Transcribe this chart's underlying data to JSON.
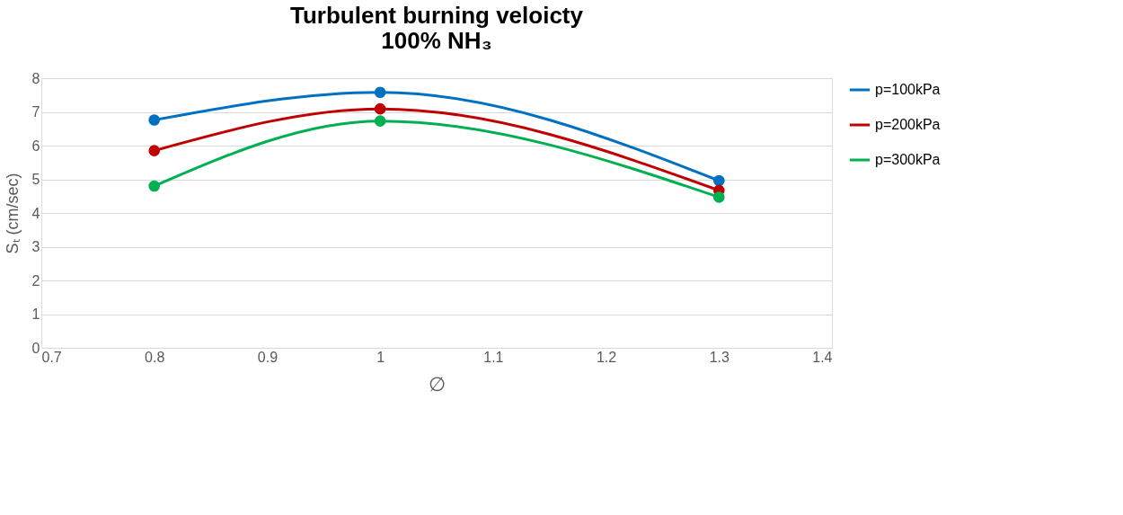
{
  "chart_data": {
    "type": "line",
    "title": "Turbulent burning veloicty\n100% NH₃",
    "xlabel": "∅",
    "ylabel": "Sₜ (cm/sec)",
    "x": [
      0.8,
      1.0,
      1.3
    ],
    "series": [
      {
        "name": "p=100kPa",
        "color": "#0070c0",
        "values": [
          6.76,
          7.58,
          4.96
        ]
      },
      {
        "name": "p=200kPa",
        "color": "#c00000",
        "values": [
          5.85,
          7.09,
          4.67
        ]
      },
      {
        "name": "p=300kPa",
        "color": "#00b050",
        "values": [
          4.8,
          6.73,
          4.47
        ]
      }
    ],
    "xlim": [
      0.7,
      1.4
    ],
    "xticks": [
      0.7,
      0.8,
      0.9,
      1,
      1.1,
      1.2,
      1.3,
      1.4
    ],
    "ylim": [
      0,
      8
    ],
    "yticks": [
      0,
      1,
      2,
      3,
      4,
      5,
      6,
      7,
      8
    ],
    "grid": "y",
    "legend": "right",
    "marker": "circle",
    "line_style": "solid"
  }
}
